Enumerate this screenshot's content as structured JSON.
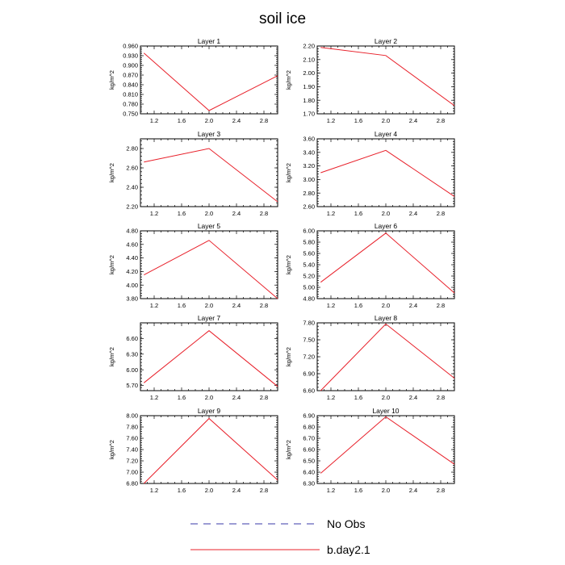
{
  "figure": {
    "title": "soil ice",
    "legend": [
      {
        "label": "No Obs",
        "color": "#3a3aaa",
        "style": "dashed"
      },
      {
        "label": "b.day2.1",
        "color": "#e8202a",
        "style": "solid"
      }
    ]
  },
  "chart_data": [
    {
      "type": "line",
      "title": "Layer 1",
      "ylabel": "kg/m^2",
      "xlim": [
        1.0,
        3.0
      ],
      "ylim": [
        0.75,
        0.96
      ],
      "xticks": [
        "1.2",
        "1.6",
        "2.0",
        "2.4",
        "2.8"
      ],
      "yticks": [
        "0.750",
        "0.780",
        "0.810",
        "0.840",
        "0.870",
        "0.900",
        "0.930",
        "0.960"
      ],
      "series": [
        {
          "name": "b.day2.1",
          "color": "#e8202a",
          "x": [
            1.05,
            2.0,
            3.0
          ],
          "y": [
            0.938,
            0.76,
            0.868
          ]
        }
      ]
    },
    {
      "type": "line",
      "title": "Layer 2",
      "ylabel": "kg/m^2",
      "xlim": [
        1.0,
        3.0
      ],
      "ylim": [
        1.7,
        2.2
      ],
      "xticks": [
        "1.2",
        "1.6",
        "2.0",
        "2.4",
        "2.8"
      ],
      "yticks": [
        "1.70",
        "1.80",
        "1.90",
        "2.00",
        "2.10",
        "2.20"
      ],
      "series": [
        {
          "name": "b.day2.1",
          "color": "#e8202a",
          "x": [
            1.05,
            2.0,
            3.0
          ],
          "y": [
            2.19,
            2.13,
            1.76
          ]
        }
      ]
    },
    {
      "type": "line",
      "title": "Layer 3",
      "ylabel": "kg/m^2",
      "xlim": [
        1.0,
        3.0
      ],
      "ylim": [
        2.2,
        2.9
      ],
      "xticks": [
        "1.2",
        "1.6",
        "2.0",
        "2.4",
        "2.8"
      ],
      "yticks": [
        "2.20",
        "2.40",
        "2.60",
        "2.80"
      ],
      "series": [
        {
          "name": "b.day2.1",
          "color": "#e8202a",
          "x": [
            1.05,
            2.0,
            3.0
          ],
          "y": [
            2.66,
            2.8,
            2.25
          ]
        }
      ]
    },
    {
      "type": "line",
      "title": "Layer 4",
      "ylabel": "kg/m^2",
      "xlim": [
        1.0,
        3.0
      ],
      "ylim": [
        2.6,
        3.6
      ],
      "xticks": [
        "1.2",
        "1.6",
        "2.0",
        "2.4",
        "2.8"
      ],
      "yticks": [
        "2.60",
        "2.80",
        "3.00",
        "3.20",
        "3.40",
        "3.60"
      ],
      "series": [
        {
          "name": "b.day2.1",
          "color": "#e8202a",
          "x": [
            1.05,
            2.0,
            3.0
          ],
          "y": [
            3.1,
            3.43,
            2.75
          ]
        }
      ]
    },
    {
      "type": "line",
      "title": "Layer 5",
      "ylabel": "kg/m^2",
      "xlim": [
        1.0,
        3.0
      ],
      "ylim": [
        3.8,
        4.8
      ],
      "xticks": [
        "1.2",
        "1.6",
        "2.0",
        "2.4",
        "2.8"
      ],
      "yticks": [
        "3.80",
        "4.00",
        "4.20",
        "4.40",
        "4.60",
        "4.80"
      ],
      "series": [
        {
          "name": "b.day2.1",
          "color": "#e8202a",
          "x": [
            1.05,
            2.0,
            3.0
          ],
          "y": [
            4.15,
            4.66,
            3.8
          ]
        }
      ]
    },
    {
      "type": "line",
      "title": "Layer 6",
      "ylabel": "kg/m^2",
      "xlim": [
        1.0,
        3.0
      ],
      "ylim": [
        4.8,
        6.0
      ],
      "xticks": [
        "1.2",
        "1.6",
        "2.0",
        "2.4",
        "2.8"
      ],
      "yticks": [
        "4.80",
        "5.00",
        "5.20",
        "5.40",
        "5.60",
        "5.80",
        "6.00"
      ],
      "series": [
        {
          "name": "b.day2.1",
          "color": "#e8202a",
          "x": [
            1.05,
            2.0,
            3.0
          ],
          "y": [
            5.09,
            5.96,
            4.9
          ]
        }
      ]
    },
    {
      "type": "line",
      "title": "Layer 7",
      "ylabel": "kg/m^2",
      "xlim": [
        1.0,
        3.0
      ],
      "ylim": [
        5.6,
        6.9
      ],
      "xticks": [
        "1.2",
        "1.6",
        "2.0",
        "2.4",
        "2.8"
      ],
      "yticks": [
        "5.70",
        "6.00",
        "6.30",
        "6.60"
      ],
      "series": [
        {
          "name": "b.day2.1",
          "color": "#e8202a",
          "x": [
            1.05,
            2.0,
            3.0
          ],
          "y": [
            5.75,
            6.75,
            5.68
          ]
        }
      ]
    },
    {
      "type": "line",
      "title": "Layer 8",
      "ylabel": "kg/m^2",
      "xlim": [
        1.0,
        3.0
      ],
      "ylim": [
        6.6,
        7.8
      ],
      "xticks": [
        "1.2",
        "1.6",
        "2.0",
        "2.4",
        "2.8"
      ],
      "yticks": [
        "6.60",
        "6.90",
        "7.20",
        "7.50",
        "7.80"
      ],
      "series": [
        {
          "name": "b.day2.1",
          "color": "#e8202a",
          "x": [
            1.05,
            2.0,
            3.0
          ],
          "y": [
            6.6,
            7.78,
            6.82
          ]
        }
      ]
    },
    {
      "type": "line",
      "title": "Layer 9",
      "ylabel": "kg/m^2",
      "xlim": [
        1.0,
        3.0
      ],
      "ylim": [
        6.8,
        8.0
      ],
      "xticks": [
        "1.2",
        "1.6",
        "2.0",
        "2.4",
        "2.8"
      ],
      "yticks": [
        "6.80",
        "7.00",
        "7.20",
        "7.40",
        "7.60",
        "7.80",
        "8.00"
      ],
      "series": [
        {
          "name": "b.day2.1",
          "color": "#e8202a",
          "x": [
            1.05,
            2.0,
            3.0
          ],
          "y": [
            6.8,
            7.95,
            6.86
          ]
        }
      ]
    },
    {
      "type": "line",
      "title": "Layer 10",
      "ylabel": "kg/m^2",
      "xlim": [
        1.0,
        3.0
      ],
      "ylim": [
        6.3,
        6.9
      ],
      "xticks": [
        "1.2",
        "1.6",
        "2.0",
        "2.4",
        "2.8"
      ],
      "yticks": [
        "6.30",
        "6.40",
        "6.50",
        "6.60",
        "6.70",
        "6.80",
        "6.90"
      ],
      "series": [
        {
          "name": "b.day2.1",
          "color": "#e8202a",
          "x": [
            1.05,
            2.0,
            3.0
          ],
          "y": [
            6.39,
            6.89,
            6.47
          ]
        }
      ]
    }
  ]
}
